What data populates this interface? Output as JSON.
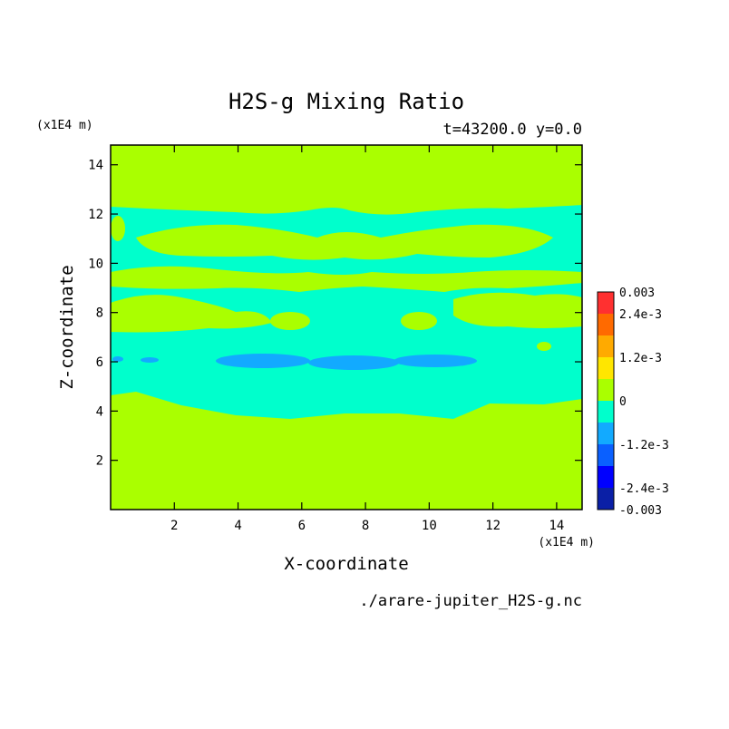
{
  "header": {
    "title": "H2S-g Mixing Ratio",
    "subtitle": "t=43200.0 y=0.0",
    "source_file": "./arare-jupiter_H2S-g.nc"
  },
  "chart_data": {
    "type": "heatmap",
    "xlabel": "X-coordinate",
    "ylabel": "Z-coordinate",
    "x_unit_label": "(x1E4 m)",
    "z_unit_label": "(x1E4 m)",
    "xlim": [
      0,
      14.8
    ],
    "ylim": [
      0,
      14.8
    ],
    "x_ticks": [
      2,
      4,
      6,
      8,
      10,
      12,
      14
    ],
    "y_ticks": [
      2,
      4,
      6,
      8,
      10,
      12,
      14
    ],
    "colorbar": {
      "labels": [
        "0.003",
        "2.4e-3",
        "1.2e-3",
        "0",
        "-1.2e-3",
        "-2.4e-3",
        "-0.003"
      ],
      "label_values": [
        0.003,
        0.0024,
        0.0012,
        0,
        -0.0012,
        -0.0024,
        -0.003
      ],
      "levels": [
        -0.003,
        -0.0024,
        -0.0018,
        -0.0012,
        -0.0006,
        0,
        0.0006,
        0.0012,
        0.0018,
        0.0024,
        0.003
      ],
      "colors": [
        "#0a1fa6",
        "#0000ff",
        "#0a60ff",
        "#12aaff",
        "#00ffcc",
        "#aaff00",
        "#ffe600",
        "#ffaa00",
        "#ff6a00",
        "#ff3030"
      ]
    },
    "field": {
      "background_level": "0 to 6e-4",
      "background_color": "#aaff00",
      "band_color": "#00ffcc",
      "deep_color": "#12aaff"
    }
  }
}
